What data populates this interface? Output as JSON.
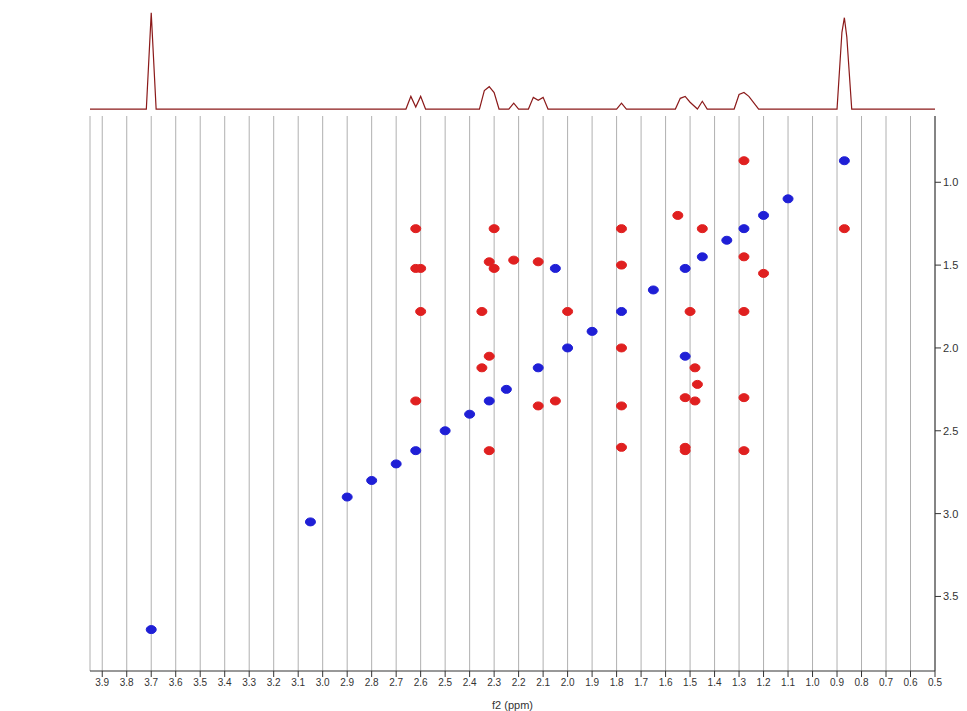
{
  "chart_data": [
    {
      "type": "scatter",
      "x_label": "f2 (ppm)",
      "xlim": [
        3.95,
        0.5
      ],
      "xticks": [
        3.9,
        3.8,
        3.7,
        3.6,
        3.5,
        3.4,
        3.3,
        3.2,
        3.1,
        {
          "value": 3,
          "label": "3.0"
        },
        2.9,
        2.8,
        2.7,
        2.6,
        2.5,
        2.4,
        2.3,
        2.2,
        2.1,
        {
          "value": 2,
          "label": "2.0"
        },
        1.9,
        1.8,
        1.7,
        1.6,
        1.5,
        1.4,
        1.3,
        1.2,
        1.1,
        {
          "value": 1,
          "label": "1.0"
        },
        0.9,
        0.8,
        0.7,
        0.6,
        0.5
      ],
      "ylim": [
        0.6,
        3.95
      ],
      "yticks": [
        {
          "value": 1,
          "label": "1.0"
        },
        1.5,
        {
          "value": 2,
          "label": "2.0"
        },
        2.5,
        {
          "value": 3,
          "label": "3.0"
        },
        3.5
      ],
      "grid": true,
      "series": [
        {
          "color": "#1f1fd6",
          "marker": "circle",
          "x": [
            3.7,
            3.05,
            2.9,
            2.8,
            2.7,
            2.62,
            2.5,
            2.4,
            2.32,
            2.25,
            2.12,
            2.0,
            1.9,
            1.78,
            1.65,
            1.52,
            1.45,
            1.35,
            1.28,
            1.2,
            1.1,
            0.87,
            1.52,
            2.05
          ],
          "y": [
            3.7,
            3.05,
            2.9,
            2.8,
            2.7,
            2.62,
            2.5,
            2.4,
            2.32,
            2.25,
            2.12,
            2.0,
            1.9,
            1.78,
            1.65,
            1.52,
            1.45,
            1.35,
            1.28,
            1.2,
            1.1,
            0.87,
            2.05,
            1.52
          ]
        },
        {
          "color": "#e02020",
          "marker": "circle",
          "x": [
            2.62,
            1.28,
            2.62,
            1.52,
            2.62,
            2.32,
            2.32,
            1.48,
            2.32,
            2.05,
            2.22,
            1.47,
            2.12,
            1.48,
            2.12,
            2.35,
            1.78,
            1.5,
            1.78,
            2.0,
            1.78,
            2.35,
            1.78,
            2.6,
            1.52,
            2.3,
            1.28,
            0.87,
            1.28,
            1.78,
            1.28,
            2.3,
            1.2,
            1.55,
            1.45,
            1.28,
            1.52,
            2.6
          ],
          "y": [
            1.28,
            2.62,
            1.52,
            2.62,
            2.32,
            2.62,
            1.48,
            2.32,
            2.05,
            2.32,
            1.47,
            2.22,
            1.48,
            2.12,
            2.35,
            2.12,
            1.5,
            1.78,
            2.0,
            1.78,
            2.35,
            1.78,
            2.6,
            1.78,
            2.3,
            1.52,
            0.87,
            1.28,
            1.78,
            1.28,
            2.3,
            1.28,
            1.55,
            1.2,
            1.28,
            1.45,
            2.6,
            1.52
          ]
        }
      ]
    },
    {
      "type": "line",
      "color": "#8b1a1a",
      "tick_labels": false,
      "xlim": [
        3.95,
        0.5
      ],
      "ylim": [
        0,
        105
      ],
      "x": [
        3.95,
        3.72,
        3.7,
        3.68,
        2.66,
        2.64,
        2.62,
        2.6,
        2.58,
        2.36,
        2.34,
        2.32,
        2.3,
        2.28,
        2.24,
        2.22,
        2.2,
        2.16,
        2.14,
        2.12,
        2.1,
        2.08,
        1.8,
        1.78,
        1.76,
        1.56,
        1.54,
        1.52,
        1.5,
        1.47,
        1.45,
        1.43,
        1.32,
        1.3,
        1.28,
        1.26,
        1.22,
        0.9,
        0.88,
        0.87,
        0.86,
        0.84,
        0.5
      ],
      "values": [
        1,
        1,
        100,
        1,
        1,
        14,
        3,
        14,
        1,
        1,
        20,
        24,
        18,
        1,
        1,
        7,
        1,
        1,
        13,
        10,
        13,
        1,
        1,
        7,
        1,
        1,
        12,
        14,
        8,
        1,
        9,
        1,
        1,
        16,
        18,
        14,
        1,
        1,
        80,
        95,
        75,
        1,
        1
      ]
    }
  ]
}
